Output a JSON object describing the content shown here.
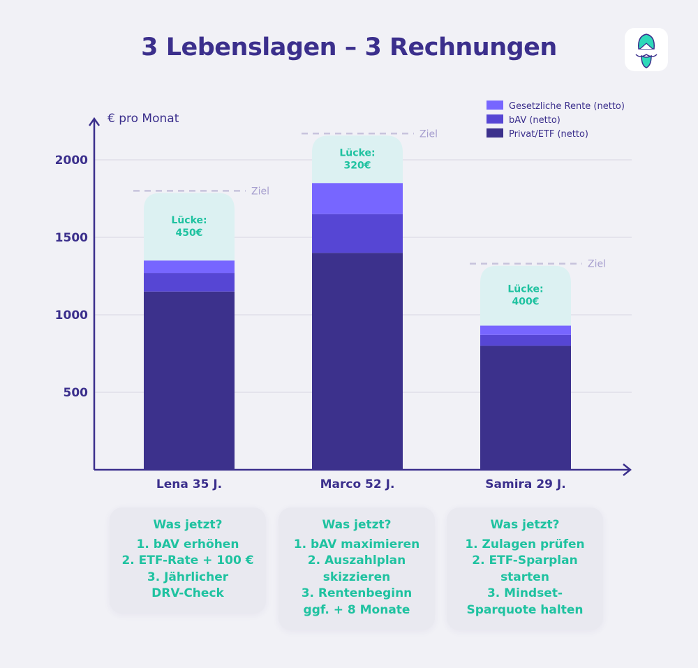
{
  "title": "3 Lebenslagen – 3 Rechnungen",
  "logo": {
    "icon": "bearded-turban-mascot-logo"
  },
  "colors": {
    "gesetzlich": "#7766ff",
    "bav": "#5646d4",
    "privat": "#3c318c",
    "gap": "#dcf1f2",
    "gap_text": "#1fc2a0",
    "axis": "#3b2f8c",
    "ziel": "#c7c3dc"
  },
  "chart_data": {
    "type": "bar",
    "stacked": true,
    "ylabel": "€ pro Monat",
    "yticks": [
      500,
      1000,
      1500,
      2000
    ],
    "ylim": [
      0,
      2250
    ],
    "grid": true,
    "legend_position": "top-right",
    "categories": [
      "Lena 35 J.",
      "Marco 52 J.",
      "Samira 29 J."
    ],
    "series": [
      {
        "name": "Privat/ETF (netto)",
        "values": [
          1150,
          1400,
          800
        ]
      },
      {
        "name": "bAV (netto)",
        "values": [
          120,
          250,
          70
        ]
      },
      {
        "name": "Gesetzliche Rente (netto)",
        "values": [
          80,
          200,
          60
        ]
      }
    ],
    "legend": [
      "Gesetzliche Rente (netto)",
      "bAV (netto)",
      "Privat/ETF (netto)"
    ],
    "target_label": "Ziel",
    "targets": [
      1800,
      2170,
      1330
    ],
    "gap_label": "Lücke:",
    "gaps": [
      "450€",
      "320€",
      "400€"
    ]
  },
  "cards": [
    {
      "heading": "Was jetzt?",
      "lines": [
        "1. bAV erhöhen",
        "2. ETF-Rate + 100 €",
        "3. Jährlicher\nDRV-Check"
      ]
    },
    {
      "heading": "Was jetzt?",
      "lines": [
        "1. bAV maximieren",
        "2. Auszahlplan\nskizzieren",
        "3. Rentenbeginn\nggf. + 8 Monate"
      ]
    },
    {
      "heading": "Was jetzt?",
      "lines": [
        "1. Zulagen prüfen",
        "2. ETF-Sparplan\nstarten",
        "3. Mindset-\nSparquote halten"
      ]
    }
  ]
}
